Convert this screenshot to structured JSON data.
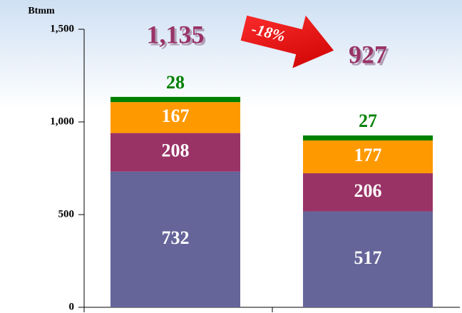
{
  "chart_data": {
    "type": "stacked_bar",
    "y_label": "Btmm",
    "categories": [
      null,
      null
    ],
    "series": [
      {
        "color": "#65659a",
        "values": [
          732,
          517
        ]
      },
      {
        "color": "#993366",
        "values": [
          208,
          206
        ]
      },
      {
        "color": "#ff9900",
        "values": [
          167,
          177
        ]
      },
      {
        "color": "#008000",
        "values": [
          28,
          27
        ]
      }
    ],
    "totals": {
      "values": [
        1135,
        927
      ],
      "value_labels": [
        "1,135",
        "927"
      ],
      "color": "#993366"
    },
    "change_annotation": "-18%",
    "ylim": [
      0,
      1500
    ],
    "yticks": [
      0,
      500,
      {
        "value": 1000,
        "label": "1,000"
      },
      {
        "value": 1500,
        "label": "1,500"
      }
    ],
    "grid": false
  }
}
